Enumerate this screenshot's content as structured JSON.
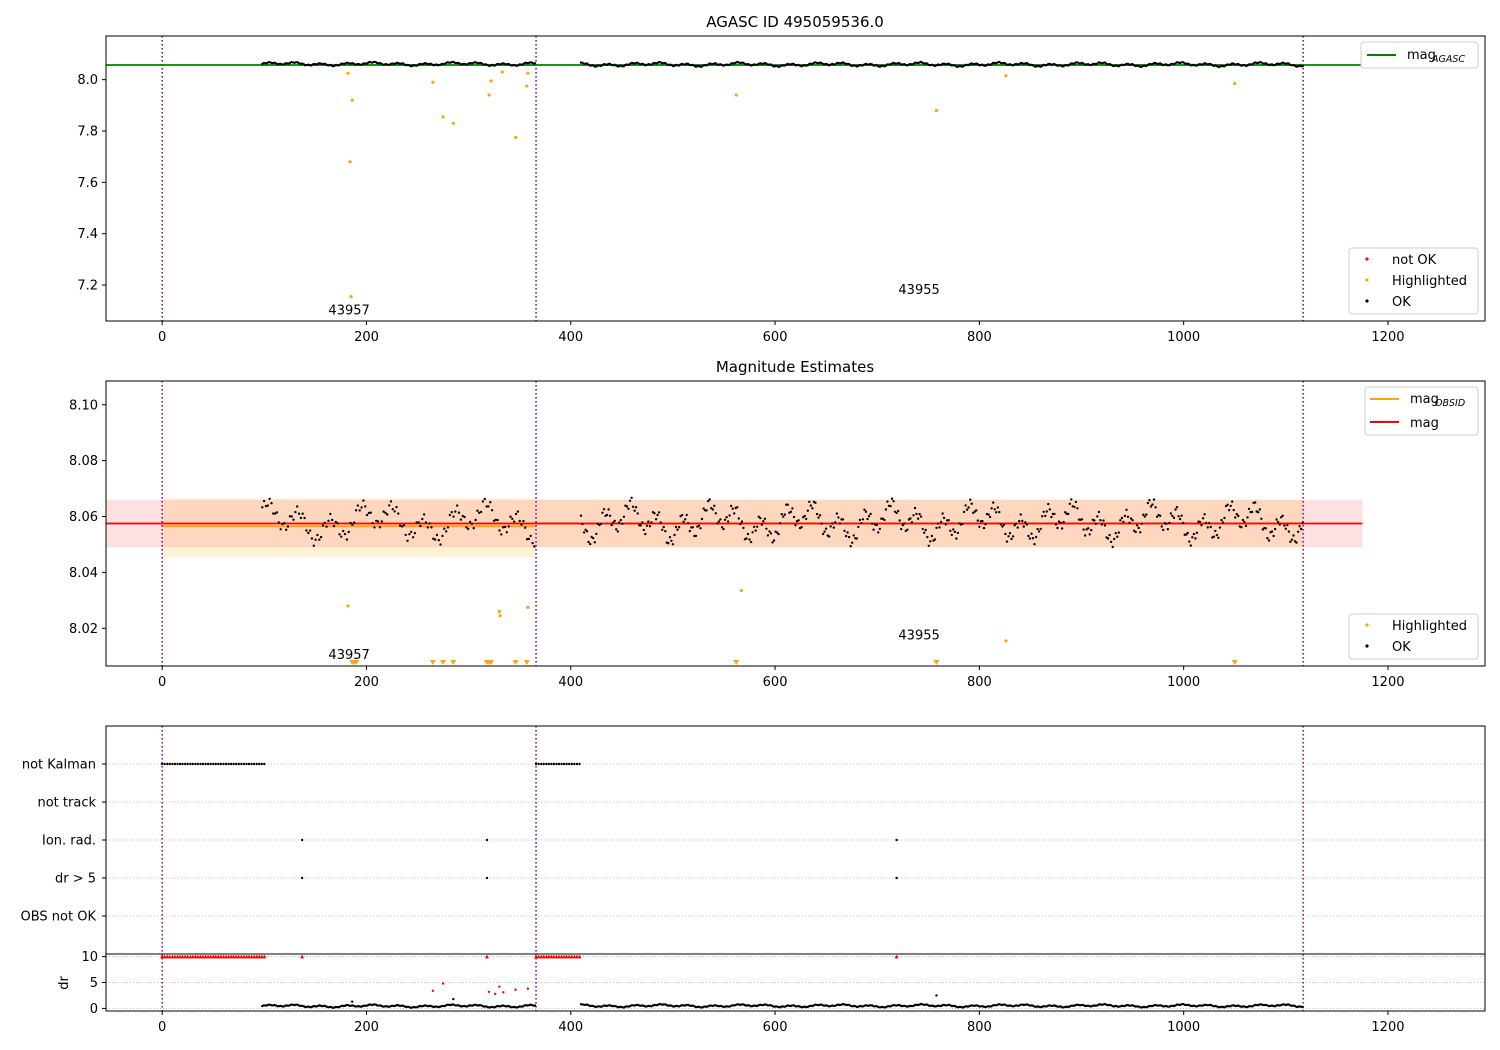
{
  "chart_data": [
    {
      "type": "scatter",
      "title": "AGASC ID 495059536.0",
      "xlim": [
        -55,
        1295
      ],
      "ylim": [
        7.06,
        8.17
      ],
      "xticks": [
        0,
        200,
        400,
        600,
        800,
        1000,
        1200
      ],
      "yticks": [
        7.2,
        7.4,
        7.6,
        7.8,
        8.0
      ],
      "ytick_labels": [
        "7.2",
        "7.4",
        "7.6",
        "7.8",
        "8.0"
      ],
      "grid": false,
      "legend_top": {
        "position": "top-right",
        "entries": [
          {
            "label": "mag",
            "sub": "AGASC",
            "color": "#008000"
          }
        ]
      },
      "legend_bottom": {
        "position": "bottom-right",
        "entries": [
          {
            "label": "not OK",
            "color": "#ff0000"
          },
          {
            "label": "Highlighted",
            "color": "#ffa500"
          },
          {
            "label": "OK",
            "color": "#000000"
          }
        ]
      },
      "mag_agasc": 8.057,
      "obsid_labels": [
        {
          "text": "43957",
          "x": 183,
          "y": 7.1
        },
        {
          "text": "43955",
          "x": 741,
          "y": 7.18
        }
      ],
      "obsid_bounds": [
        0,
        366,
        1117
      ],
      "ok_segments": [
        {
          "x0": 98,
          "x1": 366,
          "mean": 8.061,
          "amp": 0.009,
          "spacing": 1.5,
          "phase": 0
        },
        {
          "x0": 410,
          "x1": 1117,
          "mean": 8.059,
          "amp": 0.01,
          "spacing": 1.5,
          "phase": 1.3
        }
      ],
      "highlighted_points": [
        {
          "x": 182,
          "y": 8.025
        },
        {
          "x": 186,
          "y": 7.92
        },
        {
          "x": 184,
          "y": 7.68
        },
        {
          "x": 185,
          "y": 7.155
        },
        {
          "x": 265,
          "y": 7.99
        },
        {
          "x": 275,
          "y": 7.855
        },
        {
          "x": 285,
          "y": 7.83
        },
        {
          "x": 320,
          "y": 7.94
        },
        {
          "x": 322,
          "y": 7.995
        },
        {
          "x": 333,
          "y": 8.03
        },
        {
          "x": 346,
          "y": 7.775
        },
        {
          "x": 357,
          "y": 7.975
        },
        {
          "x": 358,
          "y": 8.025
        },
        {
          "x": 562,
          "y": 7.94
        },
        {
          "x": 758,
          "y": 7.88
        },
        {
          "x": 826,
          "y": 8.015
        },
        {
          "x": 1050,
          "y": 7.985
        }
      ]
    },
    {
      "type": "scatter",
      "title": "Magnitude Estimates",
      "xlim": [
        -55,
        1295
      ],
      "ylim": [
        8.0065,
        8.1085
      ],
      "xticks": [
        0,
        200,
        400,
        600,
        800,
        1000,
        1200
      ],
      "yticks": [
        8.02,
        8.04,
        8.06,
        8.08,
        8.1
      ],
      "ytick_labels": [
        "8.02",
        "8.04",
        "8.06",
        "8.08",
        "8.10"
      ],
      "grid": false,
      "legend_top": {
        "position": "top-right",
        "entries": [
          {
            "label": "mag",
            "sub": "OBSID",
            "color": "#ffa500"
          },
          {
            "label": "mag",
            "sub": "",
            "color": "#ff0000"
          }
        ]
      },
      "legend_bottom": {
        "position": "bottom-right",
        "entries": [
          {
            "label": "Highlighted",
            "color": "#ffa500"
          },
          {
            "label": "OK",
            "color": "#000000"
          }
        ]
      },
      "mag": {
        "value": 8.0575,
        "band": [
          8.049,
          8.066
        ],
        "x0": -55,
        "x1": 1175
      },
      "mag_obsid": [
        {
          "x0": 0,
          "x1": 366,
          "value": 8.0565,
          "band": [
            8.0455,
            8.0665
          ]
        },
        {
          "x0": 366,
          "x1": 1117,
          "value": 8.0575,
          "band": [
            8.049,
            8.066
          ]
        }
      ],
      "obsid_labels": [
        {
          "text": "43957",
          "x": 183,
          "y": 8.0105
        },
        {
          "text": "43955",
          "x": 741,
          "y": 8.0175
        }
      ],
      "obsid_bounds": [
        0,
        366,
        1117
      ],
      "ok_segments": [
        {
          "x0": 98,
          "x1": 366,
          "mean": 8.058,
          "amp": 0.009,
          "spacing": 1.8,
          "phase": 0.5
        },
        {
          "x0": 410,
          "x1": 1117,
          "mean": 8.058,
          "amp": 0.009,
          "spacing": 1.5,
          "phase": 2.1
        }
      ],
      "highlighted_points": [
        {
          "x": 182,
          "y": 8.028
        },
        {
          "x": 330,
          "y": 8.026
        },
        {
          "x": 331,
          "y": 8.0245
        },
        {
          "x": 358,
          "y": 8.0275
        },
        {
          "x": 567,
          "y": 8.0335
        },
        {
          "x": 826,
          "y": 8.0155
        }
      ],
      "below_limit_markers": [
        186,
        188,
        190,
        265,
        275,
        285,
        318,
        320,
        322,
        346,
        357,
        562,
        758,
        1050
      ]
    },
    {
      "type": "scatter",
      "xlim": [
        -55,
        1295
      ],
      "categories": [
        "not Kalman",
        "not track",
        "Ion. rad.",
        "dr > 5",
        "OBS not OK"
      ],
      "grid": true,
      "obsid_bounds": [
        0,
        366,
        1117
      ],
      "flag_runs": [
        {
          "category": "not Kalman",
          "ranges": [
            [
              0,
              100
            ],
            [
              366,
              410
            ]
          ],
          "spacing": 2.5
        }
      ],
      "flag_points": [
        {
          "category": "Ion. rad.",
          "x": [
            137,
            318,
            719
          ]
        },
        {
          "category": "dr > 5",
          "x": [
            137,
            318,
            719
          ]
        }
      ]
    },
    {
      "type": "scatter",
      "xlim": [
        -55,
        1295
      ],
      "ylim": [
        -0.5,
        10.5
      ],
      "ylabel": "dr",
      "xticks": [
        0,
        200,
        400,
        600,
        800,
        1000,
        1200
      ],
      "yticks": [
        0,
        5,
        10
      ],
      "ytick_labels": [
        "0",
        "5",
        "10"
      ],
      "grid": true,
      "obsid_bounds": [
        0,
        366,
        1117
      ],
      "capped_runs": [
        {
          "ranges": [
            [
              0,
              100
            ],
            [
              366,
              410
            ]
          ],
          "value": 10,
          "spacing": 2.5
        }
      ],
      "capped_points": [
        137,
        318,
        719
      ],
      "not_ok_points": [
        {
          "x": 265,
          "y": 3.4
        },
        {
          "x": 275,
          "y": 4.8
        },
        {
          "x": 320,
          "y": 3.2
        },
        {
          "x": 326,
          "y": 2.8
        },
        {
          "x": 330,
          "y": 4.2
        },
        {
          "x": 334,
          "y": 3.1
        },
        {
          "x": 346,
          "y": 3.6
        },
        {
          "x": 358,
          "y": 3.8
        }
      ],
      "ok_segments": [
        {
          "x0": 98,
          "x1": 366,
          "mean": 0.45,
          "amp": 0.35,
          "spacing": 1.5,
          "phase": 0
        },
        {
          "x0": 410,
          "x1": 1117,
          "mean": 0.5,
          "amp": 0.35,
          "spacing": 1.5,
          "phase": 1
        }
      ],
      "ok_extra": [
        {
          "x": 186,
          "y": 1.3
        },
        {
          "x": 285,
          "y": 1.8
        },
        {
          "x": 758,
          "y": 2.5
        }
      ]
    }
  ]
}
